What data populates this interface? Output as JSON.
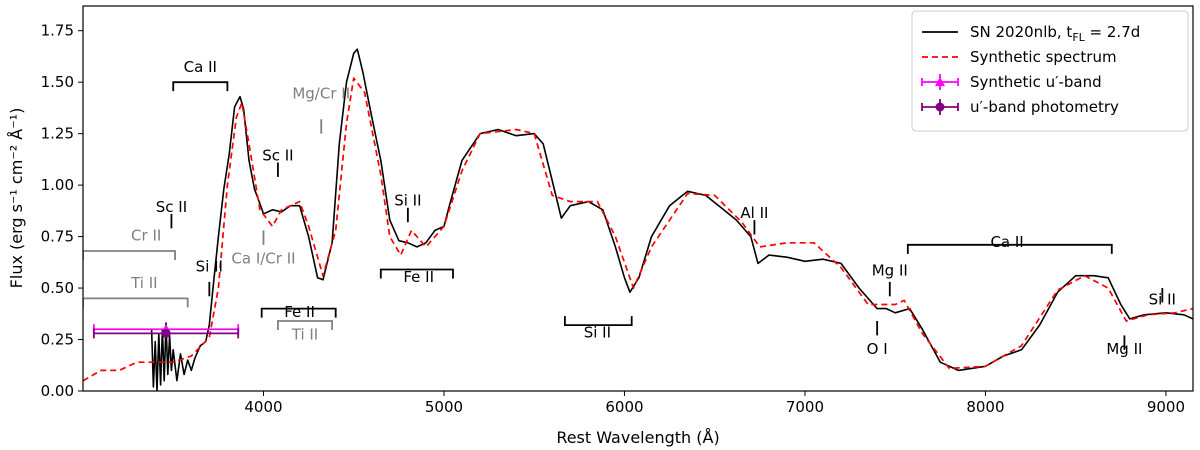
{
  "chart_data": {
    "type": "line",
    "xlabel": "Rest Wavelength (Å)",
    "ylabel": "Flux (erg s⁻¹ cm⁻² Å⁻¹)",
    "xlim": [
      3000,
      9150
    ],
    "ylim": [
      0.0,
      1.87
    ],
    "xticks": [
      4000,
      5000,
      6000,
      7000,
      8000,
      9000
    ],
    "yticks": [
      0.0,
      0.25,
      0.5,
      0.75,
      1.0,
      1.25,
      1.5,
      1.75
    ],
    "xtick_labels": [
      "4000",
      "5000",
      "6000",
      "7000",
      "8000",
      "9000"
    ],
    "ytick_labels": [
      "0.00",
      "0.25",
      "0.50",
      "0.75",
      "1.00",
      "1.25",
      "1.50",
      "1.75"
    ],
    "grid": false,
    "legend_position": "top-right",
    "legend": [
      {
        "label": "SN 2020nlb, t",
        "sub": "FL",
        "suffix": " = 2.7d",
        "style": "solid",
        "color": "#000000"
      },
      {
        "label": "Synthetic spectrum",
        "style": "dashed",
        "color": "#ff0000"
      },
      {
        "label": "Synthetic u′-band",
        "style": "errorbar-triangle",
        "color": "#ff00ff"
      },
      {
        "label": "u′-band photometry",
        "style": "errorbar-circle",
        "color": "#800080"
      }
    ],
    "series": [
      {
        "name": "SN 2020nlb, tFL = 2.7d",
        "color": "#000000",
        "style": "solid",
        "points": [
          [
            3380,
            0.3
          ],
          [
            3390,
            0.02
          ],
          [
            3400,
            0.24
          ],
          [
            3410,
            0.0
          ],
          [
            3420,
            0.28
          ],
          [
            3430,
            0.03
          ],
          [
            3440,
            0.3
          ],
          [
            3450,
            0.05
          ],
          [
            3460,
            0.33
          ],
          [
            3470,
            0.08
          ],
          [
            3480,
            0.27
          ],
          [
            3490,
            0.1
          ],
          [
            3500,
            0.2
          ],
          [
            3520,
            0.05
          ],
          [
            3540,
            0.18
          ],
          [
            3560,
            0.08
          ],
          [
            3580,
            0.15
          ],
          [
            3600,
            0.1
          ],
          [
            3620,
            0.16
          ],
          [
            3650,
            0.22
          ],
          [
            3680,
            0.24
          ],
          [
            3700,
            0.32
          ],
          [
            3720,
            0.5
          ],
          [
            3750,
            0.75
          ],
          [
            3780,
            0.98
          ],
          [
            3810,
            1.15
          ],
          [
            3840,
            1.38
          ],
          [
            3870,
            1.43
          ],
          [
            3890,
            1.37
          ],
          [
            3920,
            1.12
          ],
          [
            3950,
            0.98
          ],
          [
            3980,
            0.91
          ],
          [
            4000,
            0.86
          ],
          [
            4050,
            0.88
          ],
          [
            4100,
            0.87
          ],
          [
            4150,
            0.9
          ],
          [
            4200,
            0.9
          ],
          [
            4250,
            0.75
          ],
          [
            4300,
            0.55
          ],
          [
            4330,
            0.54
          ],
          [
            4380,
            0.72
          ],
          [
            4420,
            1.2
          ],
          [
            4460,
            1.5
          ],
          [
            4500,
            1.64
          ],
          [
            4520,
            1.66
          ],
          [
            4550,
            1.55
          ],
          [
            4600,
            1.33
          ],
          [
            4650,
            1.12
          ],
          [
            4700,
            0.83
          ],
          [
            4750,
            0.73
          ],
          [
            4800,
            0.72
          ],
          [
            4850,
            0.7
          ],
          [
            4900,
            0.72
          ],
          [
            4950,
            0.78
          ],
          [
            5000,
            0.8
          ],
          [
            5030,
            0.9
          ],
          [
            5100,
            1.12
          ],
          [
            5200,
            1.25
          ],
          [
            5300,
            1.27
          ],
          [
            5400,
            1.24
          ],
          [
            5500,
            1.25
          ],
          [
            5550,
            1.2
          ],
          [
            5600,
            1.02
          ],
          [
            5650,
            0.84
          ],
          [
            5700,
            0.9
          ],
          [
            5800,
            0.92
          ],
          [
            5880,
            0.88
          ],
          [
            5950,
            0.7
          ],
          [
            6000,
            0.55
          ],
          [
            6030,
            0.48
          ],
          [
            6080,
            0.55
          ],
          [
            6150,
            0.75
          ],
          [
            6250,
            0.9
          ],
          [
            6350,
            0.97
          ],
          [
            6450,
            0.95
          ],
          [
            6550,
            0.88
          ],
          [
            6620,
            0.83
          ],
          [
            6700,
            0.75
          ],
          [
            6740,
            0.62
          ],
          [
            6800,
            0.66
          ],
          [
            6900,
            0.65
          ],
          [
            7000,
            0.63
          ],
          [
            7100,
            0.64
          ],
          [
            7200,
            0.62
          ],
          [
            7300,
            0.5
          ],
          [
            7400,
            0.4
          ],
          [
            7450,
            0.4
          ],
          [
            7500,
            0.38
          ],
          [
            7580,
            0.4
          ],
          [
            7650,
            0.3
          ],
          [
            7750,
            0.14
          ],
          [
            7850,
            0.1
          ],
          [
            8000,
            0.12
          ],
          [
            8100,
            0.17
          ],
          [
            8200,
            0.2
          ],
          [
            8300,
            0.32
          ],
          [
            8400,
            0.48
          ],
          [
            8500,
            0.56
          ],
          [
            8600,
            0.56
          ],
          [
            8680,
            0.55
          ],
          [
            8750,
            0.42
          ],
          [
            8800,
            0.35
          ],
          [
            8880,
            0.37
          ],
          [
            9000,
            0.38
          ],
          [
            9100,
            0.37
          ],
          [
            9150,
            0.35
          ]
        ]
      },
      {
        "name": "Synthetic spectrum",
        "color": "#ff0000",
        "style": "dashed",
        "points": [
          [
            3000,
            0.05
          ],
          [
            3100,
            0.1
          ],
          [
            3200,
            0.1
          ],
          [
            3300,
            0.14
          ],
          [
            3400,
            0.14
          ],
          [
            3500,
            0.14
          ],
          [
            3600,
            0.17
          ],
          [
            3700,
            0.26
          ],
          [
            3750,
            0.5
          ],
          [
            3800,
            1.0
          ],
          [
            3850,
            1.33
          ],
          [
            3880,
            1.4
          ],
          [
            3920,
            1.2
          ],
          [
            3980,
            0.88
          ],
          [
            4050,
            0.8
          ],
          [
            4100,
            0.88
          ],
          [
            4200,
            0.92
          ],
          [
            4250,
            0.8
          ],
          [
            4330,
            0.56
          ],
          [
            4400,
            0.78
          ],
          [
            4460,
            1.3
          ],
          [
            4500,
            1.52
          ],
          [
            4560,
            1.45
          ],
          [
            4650,
            1.05
          ],
          [
            4700,
            0.75
          ],
          [
            4760,
            0.66
          ],
          [
            4820,
            0.78
          ],
          [
            4900,
            0.7
          ],
          [
            5000,
            0.8
          ],
          [
            5100,
            1.07
          ],
          [
            5200,
            1.25
          ],
          [
            5400,
            1.27
          ],
          [
            5500,
            1.25
          ],
          [
            5600,
            0.95
          ],
          [
            5700,
            0.92
          ],
          [
            5850,
            0.92
          ],
          [
            5950,
            0.75
          ],
          [
            6050,
            0.5
          ],
          [
            6150,
            0.7
          ],
          [
            6350,
            0.96
          ],
          [
            6500,
            0.95
          ],
          [
            6650,
            0.82
          ],
          [
            6750,
            0.7
          ],
          [
            6900,
            0.72
          ],
          [
            7050,
            0.72
          ],
          [
            7200,
            0.6
          ],
          [
            7350,
            0.42
          ],
          [
            7500,
            0.42
          ],
          [
            7550,
            0.44
          ],
          [
            7650,
            0.28
          ],
          [
            7800,
            0.11
          ],
          [
            8000,
            0.12
          ],
          [
            8200,
            0.22
          ],
          [
            8400,
            0.49
          ],
          [
            8550,
            0.56
          ],
          [
            8680,
            0.5
          ],
          [
            8780,
            0.34
          ],
          [
            8900,
            0.37
          ],
          [
            9050,
            0.38
          ],
          [
            9150,
            0.4
          ]
        ]
      }
    ],
    "errorbars": [
      {
        "name": "Synthetic u′-band",
        "x": 3460,
        "xerr": [
          3060,
          3860
        ],
        "y": 0.3,
        "marker": "triangle",
        "color": "#ff00ff"
      },
      {
        "name": "u′-band photometry",
        "x": 3460,
        "xerr": [
          3060,
          3860
        ],
        "y": 0.28,
        "marker": "circle",
        "color": "#800080"
      }
    ],
    "annotations": [
      {
        "text": "Ca II",
        "x": 3650,
        "y": 1.55,
        "color": "#000000"
      },
      {
        "text": "Sc II",
        "x": 3490,
        "y": 0.87,
        "color": "#000000"
      },
      {
        "text": "Cr II",
        "x": 3350,
        "y": 0.73,
        "color": "#808080"
      },
      {
        "text": "Ti II",
        "x": 3340,
        "y": 0.5,
        "color": "#808080"
      },
      {
        "text": "Si II",
        "x": 3700,
        "y": 0.58,
        "color": "#000000"
      },
      {
        "text": "Sc II",
        "x": 4080,
        "y": 1.12,
        "color": "#000000"
      },
      {
        "text": "Mg/Cr II",
        "x": 4320,
        "y": 1.42,
        "color": "#808080"
      },
      {
        "text": "Ca I/Cr II",
        "x": 4000,
        "y": 0.62,
        "color": "#808080"
      },
      {
        "text": "Fe II",
        "x": 4200,
        "y": 0.36,
        "color": "#000000"
      },
      {
        "text": "Ti II",
        "x": 4230,
        "y": 0.25,
        "color": "#808080"
      },
      {
        "text": "Si II",
        "x": 4800,
        "y": 0.9,
        "color": "#000000"
      },
      {
        "text": "Fe II",
        "x": 4860,
        "y": 0.53,
        "color": "#000000"
      },
      {
        "text": "Si II",
        "x": 5850,
        "y": 0.26,
        "color": "#000000"
      },
      {
        "text": "Al II",
        "x": 6720,
        "y": 0.84,
        "color": "#000000"
      },
      {
        "text": "Ca II",
        "x": 8120,
        "y": 0.7,
        "color": "#000000"
      },
      {
        "text": "Mg II",
        "x": 7470,
        "y": 0.56,
        "color": "#000000"
      },
      {
        "text": "O I",
        "x": 7400,
        "y": 0.18,
        "color": "#000000"
      },
      {
        "text": "Si II",
        "x": 8980,
        "y": 0.42,
        "color": "#000000"
      },
      {
        "text": "Mg II",
        "x": 8770,
        "y": 0.18,
        "color": "#000000"
      }
    ],
    "ranges": [
      {
        "x1": 3500,
        "x2": 3800,
        "y": 1.5,
        "color": "#000000",
        "ticks": "down"
      },
      {
        "x1": 3000,
        "x2": 3510,
        "y": 0.68,
        "color": "#808080",
        "ticks": "down"
      },
      {
        "x1": 3000,
        "x2": 3580,
        "y": 0.45,
        "color": "#808080",
        "ticks": "down"
      },
      {
        "x1": 3990,
        "x2": 4400,
        "y": 0.4,
        "color": "#000000",
        "ticks": "down"
      },
      {
        "x1": 4080,
        "x2": 4380,
        "y": 0.34,
        "color": "#808080",
        "ticks": "down"
      },
      {
        "x1": 4650,
        "x2": 5050,
        "y": 0.59,
        "color": "#000000",
        "ticks": "down"
      },
      {
        "x1": 5670,
        "x2": 6040,
        "y": 0.32,
        "color": "#000000",
        "ticks": "up"
      },
      {
        "x1": 7570,
        "x2": 8700,
        "y": 0.71,
        "color": "#000000",
        "ticks": "down"
      }
    ],
    "markers": [
      {
        "x": 3490,
        "y1": 0.79,
        "y2": 0.86,
        "color": "#000000"
      },
      {
        "x": 3700,
        "y1": 0.46,
        "y2": 0.53,
        "color": "#000000"
      },
      {
        "x": 4080,
        "y1": 1.04,
        "y2": 1.11,
        "color": "#000000"
      },
      {
        "x": 4320,
        "y1": 1.25,
        "y2": 1.32,
        "color": "#808080"
      },
      {
        "x": 4000,
        "y1": 0.71,
        "y2": 0.78,
        "color": "#808080"
      },
      {
        "x": 4800,
        "y1": 0.82,
        "y2": 0.89,
        "color": "#000000"
      },
      {
        "x": 6720,
        "y1": 0.76,
        "y2": 0.83,
        "color": "#000000"
      },
      {
        "x": 7470,
        "y1": 0.46,
        "y2": 0.53,
        "color": "#000000"
      },
      {
        "x": 7400,
        "y1": 0.27,
        "y2": 0.34,
        "color": "#000000"
      },
      {
        "x": 8980,
        "y1": 0.43,
        "y2": 0.5,
        "color": "#000000"
      },
      {
        "x": 8770,
        "y1": 0.2,
        "y2": 0.27,
        "color": "#000000"
      }
    ]
  }
}
